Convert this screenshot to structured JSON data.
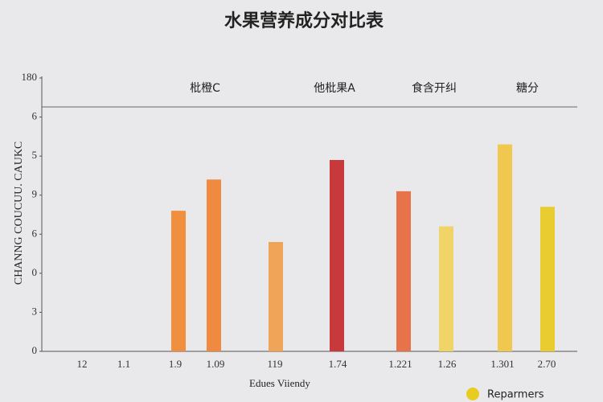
{
  "chart_data": {
    "type": "bar",
    "title": "水果营养成分对比表",
    "y_label": "CHANNG COUCUU. CAUKC",
    "x_label": "Edues Viiendy",
    "annotations": [
      "枇橙C",
      "他枇果A",
      "食含开纠",
      "糖分"
    ],
    "categories": [
      "12",
      "1.1",
      "1.9",
      "1.09",
      "119",
      "1.74",
      "1.221",
      "1.26",
      "1.301",
      "2.70"
    ],
    "values": [
      null,
      null,
      3.6,
      4.4,
      2.8,
      4.9,
      4.1,
      3.2,
      5.3,
      3.7
    ],
    "colors": [
      null,
      null,
      "#f0903f",
      "#f08a40",
      "#f0a458",
      "#c8393c",
      "#e8734a",
      "#f0d468",
      "#f0c850",
      "#e8cc30"
    ],
    "ylim": [
      0,
      7
    ],
    "yticks": [
      {
        "value": 0,
        "label": "0"
      },
      {
        "value": 1,
        "label": "3"
      },
      {
        "value": 2,
        "label": "0"
      },
      {
        "value": 3,
        "label": "6"
      },
      {
        "value": 4,
        "label": "9"
      },
      {
        "value": 5,
        "label": "5"
      },
      {
        "value": 6,
        "label": "6"
      },
      {
        "value": 7,
        "label": "180"
      }
    ],
    "legend": {
      "label": "Reparmers",
      "color": "#e8cc20"
    }
  }
}
